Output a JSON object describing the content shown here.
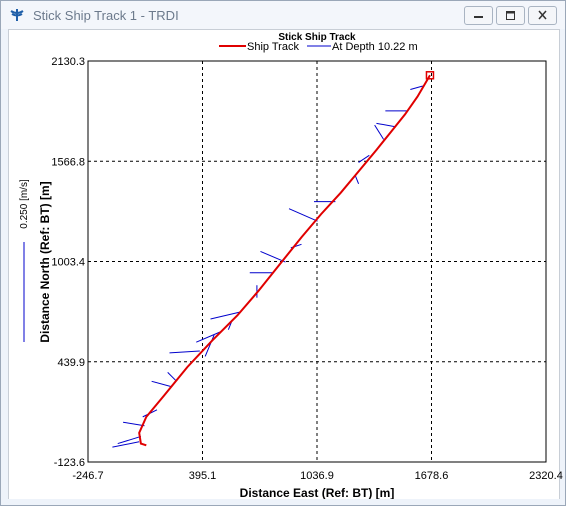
{
  "window": {
    "title": "Stick Ship Track 1 - TRDI",
    "icon": "trdi-logo-icon",
    "buttons": [
      "minimize-icon",
      "restore-icon",
      "close-icon"
    ]
  },
  "chart_data": {
    "type": "line",
    "title": "Stick Ship Track",
    "xlabel": "Distance East (Ref: BT) [m]",
    "ylabel": "Distance North (Ref: BT) [m]",
    "xlim": [
      -246.7,
      2320.4
    ],
    "ylim": [
      -123.6,
      2130.3
    ],
    "xticks": [
      "-246.7",
      "395.1",
      "1036.9",
      "1678.6",
      "2320.4"
    ],
    "yticks": [
      "-123.6",
      "439.9",
      "1003.4",
      "1566.8",
      "2130.3"
    ],
    "grid": true,
    "legend_position": "top",
    "scale_label": "0.250 [m/s]",
    "colors": {
      "track": "#e00000",
      "sticks": "#0000cc",
      "grid": "#000000"
    },
    "series": [
      {
        "name": "Ship Track",
        "points": [
          [
            1670,
            2050
          ],
          [
            1600,
            1930
          ],
          [
            1530,
            1830
          ],
          [
            1450,
            1730
          ],
          [
            1370,
            1630
          ],
          [
            1270,
            1510
          ],
          [
            1170,
            1390
          ],
          [
            1060,
            1270
          ],
          [
            950,
            1140
          ],
          [
            830,
            990
          ],
          [
            710,
            840
          ],
          [
            590,
            700
          ],
          [
            450,
            560
          ],
          [
            310,
            410
          ],
          [
            180,
            250
          ],
          [
            80,
            130
          ],
          [
            40,
            40
          ],
          [
            50,
            -20
          ],
          [
            80,
            -30
          ]
        ]
      },
      {
        "name": "At Depth 10.22 m",
        "sticks": [
          [
            [
              1630,
              1990
            ],
            [
              1560,
              1970
            ]
          ],
          [
            [
              1540,
              1850
            ],
            [
              1420,
              1850
            ]
          ],
          [
            [
              1480,
              1760
            ],
            [
              1370,
              1780
            ]
          ],
          [
            [
              1410,
              1690
            ],
            [
              1360,
              1770
            ]
          ],
          [
            [
              1330,
              1600
            ],
            [
              1270,
              1560
            ]
          ],
          [
            [
              1250,
              1490
            ],
            [
              1270,
              1440
            ]
          ],
          [
            [
              1140,
              1340
            ],
            [
              1020,
              1340
            ]
          ],
          [
            [
              1040,
              1230
            ],
            [
              880,
              1300
            ]
          ],
          [
            [
              950,
              1100
            ],
            [
              890,
              1080
            ]
          ],
          [
            [
              860,
              1000
            ],
            [
              720,
              1060
            ]
          ],
          [
            [
              790,
              940
            ],
            [
              660,
              940
            ]
          ],
          [
            [
              700,
              870
            ],
            [
              700,
              800
            ]
          ],
          [
            [
              610,
              720
            ],
            [
              440,
              680
            ]
          ],
          [
            [
              560,
              670
            ],
            [
              540,
              620
            ]
          ],
          [
            [
              500,
              610
            ],
            [
              360,
              550
            ]
          ],
          [
            [
              460,
              590
            ],
            [
              410,
              470
            ]
          ],
          [
            [
              380,
              500
            ],
            [
              210,
              490
            ]
          ],
          [
            [
              250,
              330
            ],
            [
              200,
              380
            ]
          ],
          [
            [
              220,
              300
            ],
            [
              110,
              330
            ]
          ],
          [
            [
              140,
              170
            ],
            [
              60,
              130
            ]
          ],
          [
            [
              70,
              80
            ],
            [
              -50,
              100
            ]
          ],
          [
            [
              50,
              20
            ],
            [
              -80,
              -20
            ]
          ],
          [
            [
              40,
              -10
            ],
            [
              -110,
              -40
            ]
          ]
        ]
      }
    ]
  }
}
